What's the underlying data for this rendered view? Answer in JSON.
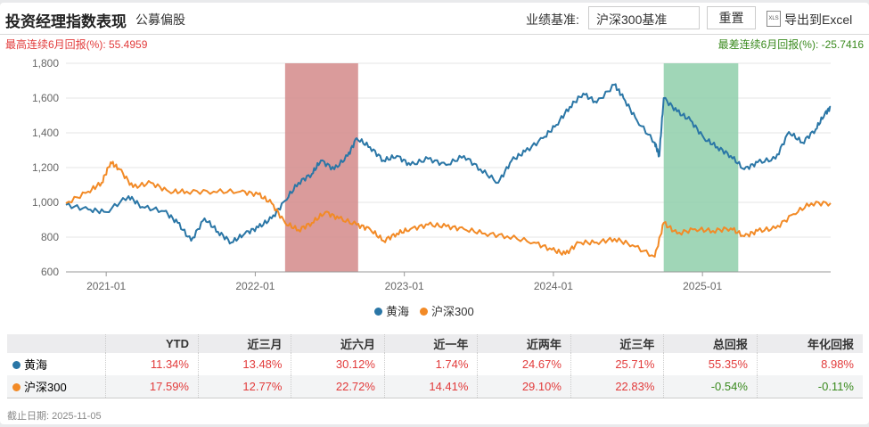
{
  "header": {
    "title": "投资经理指数表现",
    "subtitle": "公募偏股",
    "benchmark_label": "业绩基准:",
    "benchmark_value": "沪深300基准",
    "reset_label": "重置",
    "xls_icon": "XLS",
    "export_label": "导出到Excel"
  },
  "stats": {
    "best": "最高连续6月回报(%):  55.4959",
    "worst": "最差连续6月回报(%):  -25.7416"
  },
  "colors": {
    "fund": "#2a76a6",
    "bench": "#f28a26",
    "best_band": "#d48a8a",
    "worst_band": "#8fcfaa"
  },
  "chart_data": {
    "type": "line",
    "xlim": [
      2020.73,
      2025.86
    ],
    "ylim": [
      600,
      1800
    ],
    "yticks": [
      "600",
      "800",
      "1,000",
      "1,200",
      "1,400",
      "1,600",
      "1,800"
    ],
    "ytick_values": [
      600,
      800,
      1000,
      1200,
      1400,
      1600,
      1800
    ],
    "xticks": [
      "2021-01",
      "2022-01",
      "2023-01",
      "2024-01",
      "2025-01"
    ],
    "xtick_values": [
      2021.0,
      2022.0,
      2023.0,
      2024.0,
      2025.0
    ],
    "bands": [
      {
        "name": "best-6m",
        "from": 2022.2,
        "to": 2022.69
      },
      {
        "name": "worst-6m",
        "from": 2024.74,
        "to": 2025.24
      }
    ],
    "series": [
      {
        "name": "黄海",
        "x": [
          2020.73,
          2020.88,
          2021.0,
          2021.15,
          2021.24,
          2021.39,
          2021.48,
          2021.57,
          2021.66,
          2021.75,
          2021.84,
          2021.93,
          2022.02,
          2022.11,
          2022.2,
          2022.29,
          2022.38,
          2022.44,
          2022.53,
          2022.62,
          2022.68,
          2022.77,
          2022.86,
          2022.95,
          2023.04,
          2023.16,
          2023.28,
          2023.4,
          2023.51,
          2023.63,
          2023.72,
          2023.81,
          2023.93,
          2024.02,
          2024.11,
          2024.2,
          2024.29,
          2024.41,
          2024.47,
          2024.56,
          2024.68,
          2024.71,
          2024.74,
          2024.83,
          2024.92,
          2025.01,
          2025.1,
          2025.19,
          2025.28,
          2025.37,
          2025.49,
          2025.58,
          2025.67,
          2025.76,
          2025.82,
          2025.86
        ],
        "y": [
          985,
          959,
          944,
          1036,
          974,
          949,
          882,
          779,
          908,
          831,
          769,
          821,
          856,
          908,
          1010,
          1113,
          1164,
          1241,
          1190,
          1267,
          1369,
          1318,
          1241,
          1267,
          1215,
          1251,
          1215,
          1267,
          1190,
          1113,
          1241,
          1292,
          1369,
          1446,
          1549,
          1626,
          1574,
          1677,
          1600,
          1472,
          1344,
          1267,
          1600,
          1523,
          1472,
          1369,
          1318,
          1267,
          1190,
          1230,
          1251,
          1405,
          1344,
          1421,
          1508,
          1549
        ]
      },
      {
        "name": "沪深300",
        "x": [
          2020.73,
          2020.88,
          2020.97,
          2021.03,
          2021.09,
          2021.18,
          2021.3,
          2021.42,
          2021.54,
          2021.72,
          2021.9,
          2022.02,
          2022.11,
          2022.2,
          2022.29,
          2022.38,
          2022.47,
          2022.56,
          2022.68,
          2022.77,
          2022.86,
          2022.95,
          2023.04,
          2023.16,
          2023.28,
          2023.4,
          2023.54,
          2023.69,
          2023.87,
          2023.99,
          2024.08,
          2024.17,
          2024.29,
          2024.41,
          2024.53,
          2024.68,
          2024.74,
          2024.83,
          2024.95,
          2025.07,
          2025.19,
          2025.28,
          2025.37,
          2025.49,
          2025.61,
          2025.73,
          2025.86
        ],
        "y": [
          995,
          1062,
          1113,
          1231,
          1190,
          1087,
          1113,
          1062,
          1062,
          1062,
          1062,
          1046,
          995,
          882,
          841,
          882,
          944,
          908,
          872,
          846,
          779,
          821,
          846,
          872,
          862,
          846,
          821,
          805,
          769,
          728,
          703,
          769,
          769,
          790,
          754,
          687,
          882,
          821,
          846,
          836,
          851,
          805,
          836,
          851,
          933,
          995,
          995
        ]
      }
    ]
  },
  "legend": [
    "黄海",
    "沪深300"
  ],
  "table": {
    "headers": [
      "",
      "YTD",
      "近三月",
      "近六月",
      "近一年",
      "近两年",
      "近三年",
      "总回报",
      "年化回报"
    ],
    "rows": [
      {
        "name": "黄海",
        "values": [
          "11.34%",
          "13.48%",
          "30.12%",
          "1.74%",
          "24.67%",
          "25.71%",
          "55.35%",
          "8.98%"
        ]
      },
      {
        "name": "沪深300",
        "values": [
          "17.59%",
          "12.77%",
          "22.72%",
          "14.41%",
          "29.10%",
          "22.83%",
          "-0.54%",
          "-0.11%"
        ]
      }
    ]
  },
  "footer": "截止日期:  2025-11-05"
}
